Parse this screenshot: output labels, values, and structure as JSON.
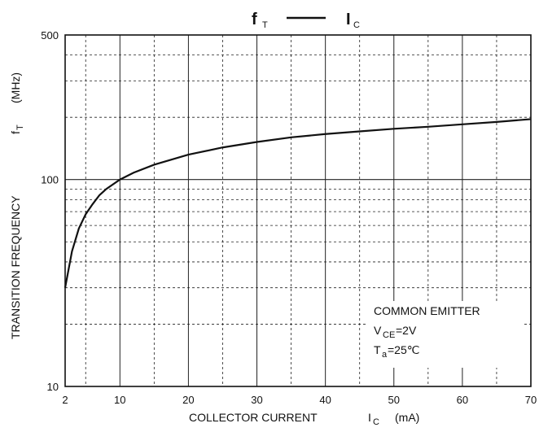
{
  "chart_data": {
    "type": "line",
    "title_left": "f",
    "title_left_sub": "T",
    "title_right": "I",
    "title_right_sub": "C",
    "xlabel_main": "COLLECTOR CURRENT",
    "xlabel_symbol": "I",
    "xlabel_sub": "C",
    "xlabel_unit": "(mA)",
    "ylabel_main": "TRANSITION FREQUENCY",
    "ylabel_symbol": "f",
    "ylabel_sub": "T",
    "ylabel_unit": "(MHz)",
    "x_scale": "linear",
    "y_scale": "log",
    "xlim": [
      2,
      70
    ],
    "ylim": [
      10,
      500
    ],
    "x_ticks": [
      2,
      10,
      20,
      30,
      40,
      50,
      60,
      70
    ],
    "y_ticks": [
      10,
      100,
      500
    ],
    "grid": true,
    "series": [
      {
        "x": [
          2,
          3,
          4,
          5,
          6,
          7,
          8,
          10,
          12,
          15,
          20,
          25,
          30,
          35,
          40,
          45,
          50,
          55,
          60,
          65,
          70
        ],
        "y": [
          30,
          45,
          58,
          68,
          76,
          84,
          90,
          100,
          108,
          118,
          132,
          143,
          152,
          160,
          166,
          171,
          176,
          180,
          185,
          190,
          196
        ]
      }
    ],
    "annotation": {
      "line1": "COMMON EMITTER",
      "line2_symbol": "V",
      "line2_sub": "CE",
      "line2_value": "=2V",
      "line3_symbol": "T",
      "line3_sub": "a",
      "line3_value": "=25℃"
    }
  }
}
